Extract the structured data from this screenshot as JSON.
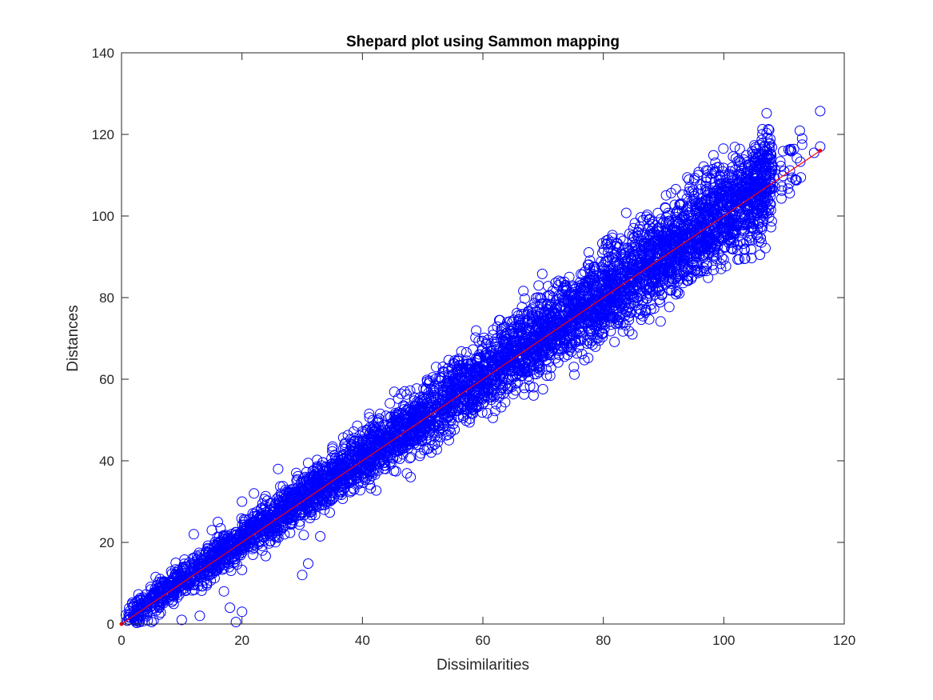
{
  "chart_data": {
    "type": "scatter",
    "title": "Shepard plot using Sammon mapping",
    "xlabel": "Dissimilarities",
    "ylabel": "Distances",
    "xlim": [
      0,
      120
    ],
    "ylim": [
      0,
      140
    ],
    "xticks": [
      0,
      20,
      40,
      60,
      80,
      100,
      120
    ],
    "yticks": [
      0,
      20,
      40,
      60,
      80,
      100,
      120,
      140
    ],
    "grid": false,
    "colors": {
      "scatter": "#0000ff",
      "line": "#ff0000"
    },
    "series": [
      {
        "type": "scatter",
        "marker": "circle-open",
        "trend": {
          "x": [
            0,
            116
          ],
          "y": [
            0,
            116
          ]
        },
        "x_range": [
          0.5,
          116
        ],
        "spread": {
          "at_low_x": "y from 0 to about 1.5x",
          "at_high_x": "about +/-6"
        },
        "points": [
          [
            116,
            125.7
          ],
          [
            116,
            117
          ],
          [
            113,
            119
          ],
          [
            113,
            117.5
          ],
          [
            111,
            116
          ],
          [
            115,
            115.5
          ],
          [
            105,
            113.5
          ],
          [
            104,
            111
          ],
          [
            103,
            110.5
          ],
          [
            108,
            112
          ],
          [
            110,
            111
          ],
          [
            107,
            109
          ],
          [
            95,
            105.5
          ],
          [
            93,
            103
          ],
          [
            98,
            101
          ],
          [
            90,
            85
          ],
          [
            90,
            87
          ],
          [
            88,
            88
          ],
          [
            85,
            97
          ],
          [
            35,
            43
          ],
          [
            37,
            44
          ],
          [
            47,
            57
          ],
          [
            48,
            36
          ],
          [
            51,
            43
          ],
          [
            52,
            44
          ],
          [
            60,
            54
          ],
          [
            56,
            65
          ],
          [
            27,
            31.5
          ],
          [
            26,
            38
          ],
          [
            29,
            37
          ],
          [
            33,
            21.5
          ],
          [
            31,
            14.8
          ],
          [
            30,
            12
          ],
          [
            12,
            22
          ],
          [
            15,
            23
          ],
          [
            16,
            25
          ],
          [
            20,
            30
          ],
          [
            22,
            32
          ],
          [
            9,
            15
          ],
          [
            7,
            10
          ],
          [
            17,
            8
          ],
          [
            18,
            4
          ],
          [
            19,
            0.5
          ],
          [
            20,
            3
          ],
          [
            13,
            2
          ],
          [
            10,
            1
          ],
          [
            5,
            0.5
          ],
          [
            3,
            0.5
          ]
        ]
      }
    ]
  }
}
